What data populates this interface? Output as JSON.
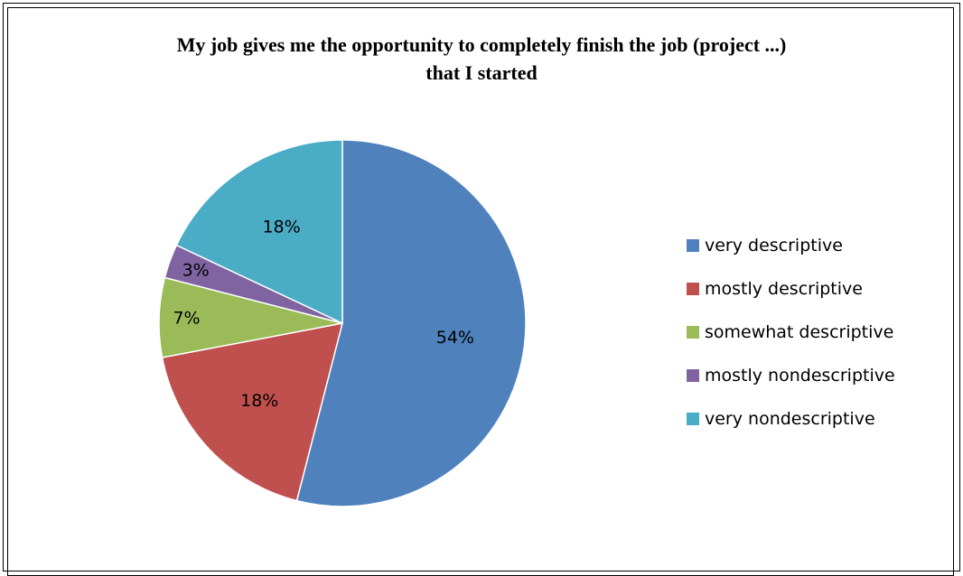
{
  "chart_data": {
    "type": "pie",
    "title": "My job gives me the opportunity to completely finish the job (project ...) that I started",
    "title_lines": [
      "My job gives me the opportunity to completely finish the job (project ...)",
      "that I started"
    ],
    "categories": [
      "very descriptive",
      "mostly descriptive",
      "somewhat descriptive",
      "mostly nondescriptive",
      "very nondescriptive"
    ],
    "values": [
      54,
      18,
      7,
      3,
      18
    ],
    "value_labels": [
      "54%",
      "18%",
      "7%",
      "3%",
      "18%"
    ],
    "colors": [
      "#4F81BD",
      "#C0504D",
      "#9BBB59",
      "#8064A2",
      "#4BACC6"
    ],
    "legend_position": "right"
  }
}
